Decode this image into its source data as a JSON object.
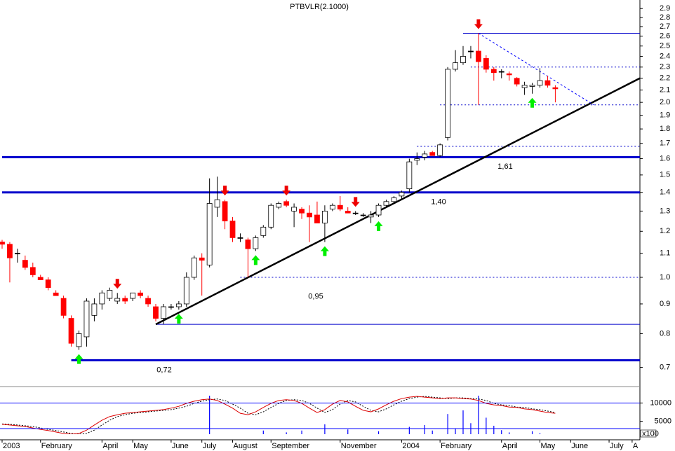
{
  "chart_data": {
    "type": "candlestick",
    "title": "PTBVLR(2.1000)",
    "log_scale": true,
    "categories": [
      "2003",
      null,
      null,
      null,
      null,
      "February",
      null,
      null,
      null,
      null,
      null,
      null,
      null,
      "April",
      null,
      null,
      null,
      "May",
      null,
      null,
      null,
      null,
      "June",
      null,
      null,
      null,
      "July",
      null,
      null,
      null,
      "August",
      null,
      null,
      null,
      null,
      "September",
      null,
      null,
      null,
      null,
      null,
      null,
      null,
      null,
      "November",
      null,
      null,
      null,
      null,
      null,
      null,
      null,
      "2004",
      null,
      null,
      null,
      null,
      "February",
      null,
      null,
      null,
      null,
      null,
      null,
      null,
      "April",
      null,
      null,
      null,
      null,
      "May",
      null,
      null,
      null,
      "June",
      null,
      null,
      null,
      null,
      "July",
      null,
      null,
      "A"
    ],
    "open": [
      1.15,
      1.14,
      1.1,
      1.07,
      1.04,
      1.0,
      0.99,
      0.94,
      0.92,
      0.85,
      0.76,
      0.79,
      0.86,
      0.9,
      0.92,
      0.91,
      0.92,
      0.92,
      0.94,
      0.92,
      0.89,
      0.85,
      0.89,
      0.89,
      0.9,
      1.0,
      1.08,
      1.05,
      1.32,
      1.35,
      1.25,
      1.17,
      1.16,
      1.12,
      1.18,
      1.22,
      1.32,
      1.35,
      1.3,
      1.31,
      1.29,
      1.28,
      1.24,
      1.31,
      1.33,
      1.3,
      1.29,
      1.28,
      1.27,
      1.28,
      1.33,
      1.35,
      1.38,
      1.42,
      1.59,
      1.61,
      1.64,
      1.62,
      1.74,
      2.28,
      2.34,
      2.45,
      2.45,
      2.38,
      2.28,
      2.26,
      2.24,
      2.2,
      2.12,
      2.13,
      2.14,
      2.18,
      2.12,
      null,
      null,
      null,
      null,
      null,
      null,
      null,
      null,
      null,
      null
    ],
    "high": [
      1.16,
      1.15,
      1.12,
      1.09,
      1.06,
      1.01,
      1.0,
      0.95,
      0.93,
      0.86,
      0.81,
      0.92,
      0.92,
      0.95,
      0.96,
      0.94,
      0.93,
      0.94,
      0.95,
      0.93,
      0.9,
      0.9,
      0.9,
      0.91,
      1.02,
      1.09,
      1.1,
      1.48,
      1.49,
      1.36,
      1.27,
      1.19,
      1.17,
      1.18,
      1.23,
      1.34,
      1.35,
      1.36,
      1.34,
      1.32,
      1.33,
      1.35,
      1.33,
      1.34,
      1.38,
      1.32,
      1.3,
      1.29,
      1.3,
      1.34,
      1.36,
      1.38,
      1.41,
      1.6,
      1.64,
      1.65,
      1.65,
      1.7,
      2.3,
      2.46,
      2.5,
      2.5,
      2.63,
      2.41,
      2.3,
      2.28,
      2.26,
      2.21,
      2.17,
      2.16,
      2.29,
      2.22,
      2.14,
      null,
      null,
      null,
      null,
      null,
      null,
      null,
      null,
      null,
      null
    ],
    "low": [
      1.12,
      0.98,
      1.06,
      1.03,
      1.0,
      0.99,
      0.95,
      0.93,
      0.85,
      0.76,
      0.75,
      0.76,
      0.84,
      0.88,
      0.91,
      0.9,
      0.9,
      0.91,
      0.92,
      0.89,
      0.84,
      0.83,
      0.88,
      0.88,
      0.89,
      0.99,
      0.93,
      1.04,
      1.27,
      1.21,
      1.15,
      1.15,
      1.0,
      1.11,
      1.17,
      1.21,
      1.31,
      1.32,
      1.22,
      1.26,
      1.15,
      1.24,
      1.15,
      1.3,
      1.3,
      1.29,
      1.28,
      1.27,
      1.24,
      1.27,
      1.32,
      1.34,
      1.36,
      1.4,
      1.56,
      1.59,
      1.62,
      1.61,
      1.72,
      2.26,
      2.32,
      2.38,
      1.98,
      2.25,
      2.18,
      2.2,
      2.18,
      2.13,
      2.06,
      2.07,
      2.12,
      2.12,
      2.0,
      null,
      null,
      null,
      null,
      null,
      null,
      null,
      null,
      null,
      null
    ],
    "close": [
      1.14,
      1.08,
      1.1,
      1.04,
      1.01,
      0.99,
      0.96,
      0.93,
      0.86,
      0.77,
      0.8,
      0.91,
      0.9,
      0.94,
      0.95,
      0.92,
      0.91,
      0.94,
      0.93,
      0.9,
      0.85,
      0.89,
      0.89,
      0.9,
      1.0,
      1.08,
      1.07,
      1.34,
      1.36,
      1.25,
      1.17,
      1.17,
      1.12,
      1.17,
      1.22,
      1.33,
      1.34,
      1.33,
      1.32,
      1.29,
      1.27,
      1.24,
      1.3,
      1.33,
      1.31,
      1.29,
      1.29,
      1.28,
      1.28,
      1.33,
      1.35,
      1.37,
      1.4,
      1.58,
      1.6,
      1.63,
      1.62,
      1.69,
      2.28,
      2.34,
      2.4,
      2.45,
      2.35,
      2.28,
      2.25,
      2.26,
      2.23,
      2.15,
      2.14,
      2.14,
      2.18,
      2.14,
      2.11,
      null,
      null,
      null,
      null,
      null,
      null,
      null,
      null,
      null,
      null
    ],
    "up_color": "#ffffff",
    "down_color": "#ff0000",
    "ylim": [
      0.68,
      3.0
    ],
    "yticks": [
      0.7,
      0.8,
      0.9,
      {
        "value": 1,
        "label": "1.0"
      },
      1.1,
      1.2,
      1.3,
      1.4,
      1.5,
      1.6,
      1.7,
      1.8,
      1.9,
      {
        "value": 2,
        "label": "2.0"
      },
      2.1,
      2.2,
      2.3,
      2.4,
      2.5,
      2.6,
      2.7,
      2.8,
      2.9
    ],
    "levels": [
      {
        "value": 2.63,
        "style": "solid",
        "width": 1,
        "from": 60
      },
      {
        "value": 2.3,
        "style": "dashed",
        "width": 1,
        "from": 61
      },
      {
        "value": 1.98,
        "style": "dashed",
        "width": 1,
        "from": 57
      },
      {
        "value": 1.68,
        "style": "dashed",
        "width": 1,
        "from": 54
      },
      {
        "value": 1.61,
        "style": "solid",
        "width": 3,
        "from": 0,
        "label": "1,61"
      },
      {
        "value": 1.4,
        "style": "solid",
        "width": 3,
        "from": 0,
        "label": "1,40"
      },
      {
        "value": 1,
        "style": "dashed",
        "width": 1,
        "from": 31
      },
      {
        "value": 0.95,
        "style": "none",
        "from": 31,
        "label": "0,95"
      },
      {
        "value": 0.83,
        "style": "solid",
        "width": 1,
        "from": 20
      },
      {
        "value": 0.72,
        "style": "solid",
        "width": 3,
        "from": 9,
        "label": "0,72"
      }
    ],
    "level_color": "#0000cc",
    "trendlines": [
      {
        "from": [
          20,
          0.83
        ],
        "to": [
          83,
          2.2
        ],
        "color": "#000000",
        "dashed": false
      },
      {
        "from": [
          62,
          2.63
        ],
        "to": [
          77,
          1.98
        ],
        "color": "#0000ff",
        "dashed": true
      }
    ],
    "buy_signals": [
      10,
      23,
      33,
      42,
      49,
      69
    ],
    "sell_signals": [
      15,
      29,
      37,
      46,
      62
    ],
    "buy_color": "#00ee00",
    "sell_color": "#ee0000",
    "volume": {
      "color": "#0000ff",
      "unit_label": "x100",
      "ylim": [
        1500,
        12000
      ],
      "yticks": [
        5000,
        10000
      ],
      "values": [
        1200,
        1200,
        1200,
        1200,
        1200,
        1200,
        1200,
        1200,
        1200,
        1200,
        1200,
        1200,
        1200,
        1200,
        1200,
        1200,
        1200,
        1200,
        1200,
        1200,
        1200,
        1200,
        1200,
        1200,
        1200,
        1200,
        1200,
        12500,
        1200,
        1200,
        1200,
        1200,
        1200,
        1200,
        2500,
        1200,
        1200,
        2000,
        1200,
        2500,
        1200,
        1200,
        4200,
        1200,
        1200,
        2800,
        1200,
        1200,
        1200,
        2300,
        1200,
        1200,
        1200,
        3500,
        1200,
        4000,
        2500,
        1200,
        7000,
        3000,
        8000,
        4500,
        12500,
        6000,
        3800,
        2600,
        2000,
        1200,
        1200,
        2300,
        1800,
        1200,
        1200,
        null,
        null,
        null,
        null,
        null,
        null,
        null,
        null,
        null,
        null
      ]
    },
    "oscillator": {
      "color": "#dd0000",
      "values": [
        4200,
        4000,
        3800,
        3600,
        3200,
        2800,
        2500,
        2100,
        1700,
        1500,
        1700,
        2600,
        4000,
        5300,
        6300,
        6800,
        7200,
        7400,
        7600,
        7800,
        8000,
        8200,
        8600,
        9100,
        9900,
        10500,
        10900,
        11100,
        10700,
        9700,
        8600,
        7200,
        6800,
        7600,
        8800,
        9900,
        10700,
        10900,
        10700,
        9900,
        8600,
        7400,
        8200,
        9700,
        10700,
        10300,
        9100,
        8000,
        7600,
        8400,
        9500,
        10500,
        11200,
        11600,
        11800,
        11600,
        11400,
        11200,
        11400,
        11400,
        11200,
        11100,
        10700,
        9900,
        9500,
        9300,
        8900,
        8800,
        8400,
        8200,
        7800,
        7400,
        7200,
        null,
        null,
        null,
        null,
        null,
        null,
        null,
        null,
        null,
        null
      ]
    },
    "oscillator_signal": {
      "color": "#000000",
      "values": [
        4300,
        4200,
        4000,
        3800,
        3600,
        3200,
        2800,
        2500,
        2100,
        1700,
        1500,
        1700,
        2600,
        4000,
        5300,
        6300,
        6800,
        7200,
        7400,
        7600,
        7800,
        8000,
        8200,
        8600,
        9100,
        9900,
        10500,
        10900,
        11100,
        10700,
        9700,
        8600,
        7200,
        6800,
        7600,
        8800,
        9900,
        10700,
        10900,
        10700,
        9900,
        8600,
        7400,
        8200,
        9700,
        10700,
        10300,
        9100,
        8000,
        7600,
        8400,
        9500,
        10500,
        11200,
        11600,
        11800,
        11600,
        11400,
        11200,
        11400,
        11400,
        11200,
        11100,
        10700,
        9900,
        9500,
        9300,
        8900,
        8800,
        8400,
        8200,
        7800,
        7400,
        null,
        null,
        null,
        null,
        null,
        null,
        null,
        null,
        null,
        null
      ]
    }
  }
}
